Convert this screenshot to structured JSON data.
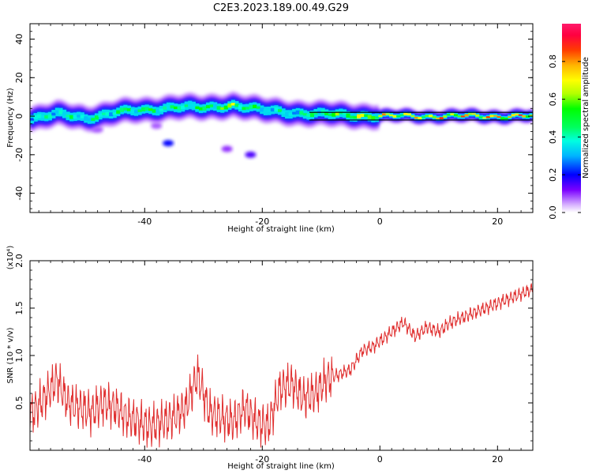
{
  "figure": {
    "title": "C2E3.2023.189.00.49.G29"
  },
  "chart_data": [
    {
      "type": "heatmap",
      "xlabel": "Height of straight line (km)",
      "ylabel": "Frequency (Hz)",
      "xlim": [
        -59.5,
        26
      ],
      "ylim": [
        -50,
        48
      ],
      "x_ticks": [
        -40,
        -20,
        0,
        20
      ],
      "y_ticks": [
        40,
        20,
        0,
        -20,
        -40
      ],
      "colorbar": {
        "label": "Normalized spectral amplitude",
        "range": [
          0.0,
          1.0
        ],
        "ticks": [
          0.0,
          0.2,
          0.4,
          0.6,
          0.8
        ],
        "tick_labels": [
          "0.0",
          "0.2",
          "0.4",
          "0.6",
          "0.8"
        ]
      },
      "ridge": {
        "x": [
          -59,
          -55,
          -50,
          -45,
          -40,
          -35,
          -30,
          -25,
          -20,
          -15,
          -10,
          -5,
          0,
          5,
          10,
          15,
          20,
          26
        ],
        "frequency_hz": [
          -1,
          1,
          -1,
          2,
          3,
          5,
          4,
          6,
          3,
          2,
          1,
          0.5,
          0,
          0,
          0,
          0,
          0,
          0
        ],
        "amplitude": [
          0.45,
          0.5,
          0.5,
          0.55,
          0.6,
          0.55,
          0.6,
          0.75,
          0.5,
          0.45,
          0.6,
          0.7,
          0.85,
          0.85,
          0.9,
          0.9,
          0.95,
          0.95
        ]
      },
      "blobs": [
        {
          "x": -36,
          "frequency_hz": -14,
          "amplitude": 0.2
        },
        {
          "x": -26,
          "frequency_hz": -17,
          "amplitude": 0.1
        },
        {
          "x": -22,
          "frequency_hz": -20,
          "amplitude": 0.15
        },
        {
          "x": -48,
          "frequency_hz": -7,
          "amplitude": 0.08
        },
        {
          "x": -38,
          "frequency_hz": -5,
          "amplitude": 0.08
        }
      ]
    },
    {
      "type": "line",
      "xlabel": "Height of straight line (km)",
      "ylabel": "SNR (10 * v/v)",
      "y_multiplier_label": "(x10⁴)",
      "xlim": [
        -59.5,
        26
      ],
      "ylim": [
        0.0,
        2.0
      ],
      "x_ticks": [
        -40,
        -20,
        0,
        20
      ],
      "y_ticks": [
        0.5,
        1.0,
        1.5,
        2.0
      ],
      "y_tick_labels": [
        "0.5",
        "1.0",
        "1.5",
        "2.0"
      ],
      "color": "#e03030",
      "series": [
        {
          "x": [
            -59,
            -57,
            -55,
            -53,
            -51,
            -49,
            -47,
            -45,
            -43,
            -41,
            -39,
            -37,
            -35,
            -33,
            -31,
            -29,
            -27,
            -25,
            -23,
            -21,
            -19,
            -17,
            -15,
            -13,
            -11,
            -9,
            -7,
            -5,
            -3,
            -1,
            0,
            2,
            4,
            6,
            8,
            10,
            12,
            14,
            16,
            18,
            20,
            22,
            24,
            26
          ],
          "values": [
            0.4,
            0.55,
            0.75,
            0.5,
            0.45,
            0.4,
            0.5,
            0.45,
            0.35,
            0.3,
            0.25,
            0.3,
            0.35,
            0.45,
            0.8,
            0.4,
            0.35,
            0.3,
            0.45,
            0.3,
            0.25,
            0.65,
            0.7,
            0.55,
            0.6,
            0.75,
            0.8,
            0.85,
            1.05,
            1.1,
            1.15,
            1.25,
            1.35,
            1.2,
            1.3,
            1.25,
            1.35,
            1.4,
            1.45,
            1.5,
            1.55,
            1.6,
            1.65,
            1.7
          ]
        }
      ]
    }
  ]
}
